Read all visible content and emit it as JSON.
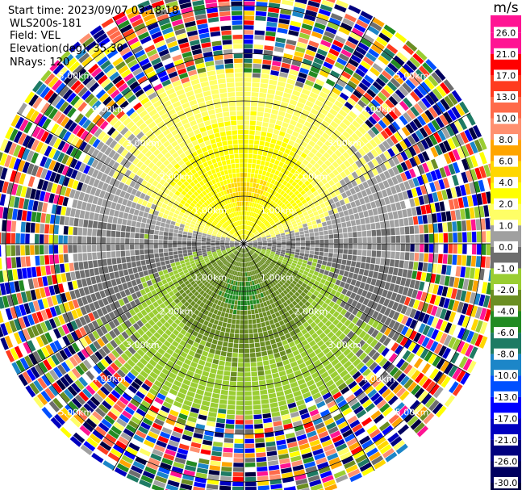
{
  "header": {
    "start_time": "Start time: 2023/09/07 03:18:18",
    "instrument": "WLS200s-181",
    "field": "Field: VEL",
    "elevation": "Elevation(deg): 35.30",
    "nrays": "NRays: 120"
  },
  "chart_data": {
    "type": "heatmap",
    "projection": "polar PPI",
    "field": "VEL",
    "units": "m/s",
    "n_rays": 120,
    "elevation_deg": 35.3,
    "range_rings_km": [
      1,
      2,
      3,
      4,
      5
    ],
    "range_ring_labels": [
      "1.00km",
      "2.00km",
      "3.00km",
      "4.00km",
      "5.00km"
    ],
    "spokes_deg": [
      0,
      30,
      60,
      90,
      120,
      150,
      180,
      210,
      240,
      270,
      300,
      330
    ],
    "max_range_km": 5.5,
    "signal_limit_km": 3.4,
    "colorbar": {
      "title": "m/s",
      "ticks": [
        "26.0",
        "21.0",
        "17.0",
        "13.0",
        "10.0",
        "8.0",
        "6.0",
        "4.0",
        "2.0",
        "1.0",
        "0.0",
        "-1.0",
        "-2.0",
        "-4.0",
        "-6.0",
        "-8.0",
        "-10.0",
        "-13.0",
        "-17.0",
        "-21.0",
        "-26.0",
        "-30.0"
      ],
      "colors": [
        "#ff1493",
        "#ff0000",
        "#ff3b1f",
        "#ff6a4a",
        "#ff9070",
        "#ffa500",
        "#ffd700",
        "#ffff00",
        "#ffff66",
        "#a0a0a0",
        "#6e6e6e",
        "#9acd32",
        "#6b8e23",
        "#228b22",
        "#1e7b64",
        "#1c86c8",
        "#0050ff",
        "#0000ff",
        "#0000c0",
        "#00007f",
        "#000060",
        "#000040"
      ]
    }
  }
}
